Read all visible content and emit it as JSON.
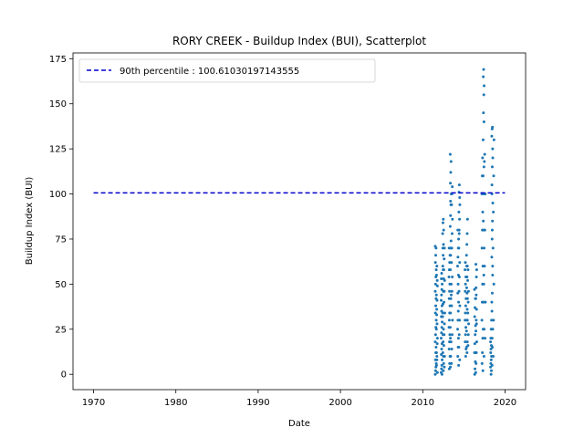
{
  "chart_data": {
    "type": "scatter",
    "title": "RORY CREEK - Buildup Index (BUI), Scatterplot",
    "xlabel": "Date",
    "ylabel": "Buildup Index (BUI)",
    "xlim": [
      1967.5,
      2022.5
    ],
    "ylim": [
      -8.5,
      178.2
    ],
    "x_ticks": [
      1970,
      1980,
      1990,
      2000,
      2010,
      2020
    ],
    "y_ticks": [
      0,
      25,
      50,
      75,
      100,
      125,
      150,
      175
    ],
    "legend_position": "top-left",
    "grid": false,
    "colors": {
      "points": "#1f77b4",
      "percentile_line": "#0000cd"
    },
    "reference_line": {
      "label": "90th percentile : 100.61030197143555",
      "y": 100.61030197143555,
      "x_range": [
        1970,
        2020
      ]
    },
    "series": [
      {
        "seasons": [
          {
            "x": 2011.58,
            "y": [
              0,
              2,
              4,
              6,
              8,
              12,
              15,
              18,
              22,
              26,
              30,
              34,
              38,
              42,
              46,
              50,
              54,
              58,
              62,
              66,
              70,
              71
            ]
          },
          {
            "x": 2011.72,
            "y": [
              1,
              5,
              10,
              17,
              25,
              33,
              41,
              49,
              55,
              60,
              52,
              44,
              36,
              28,
              20,
              12,
              8
            ]
          },
          {
            "x": 2012.3,
            "y": [
              0,
              1,
              3,
              5,
              8,
              11,
              14,
              17,
              20,
              23,
              26,
              29,
              32,
              35,
              38,
              41,
              44,
              47,
              50,
              53,
              56
            ]
          },
          {
            "x": 2012.48,
            "y": [
              2,
              6,
              12,
              18,
              25,
              32,
              39,
              46,
              53,
              60,
              66,
              72,
              78,
              84,
              86,
              80,
              70,
              58,
              46,
              34,
              22,
              10
            ]
          },
          {
            "x": 2012.62,
            "y": [
              4,
              10,
              16,
              22,
              28,
              34,
              40,
              46,
              52,
              58,
              64,
              70
            ]
          },
          {
            "x": 2013.25,
            "y": [
              3,
              6,
              10,
              14,
              18,
              22,
              26,
              30,
              34,
              38,
              42,
              46,
              50,
              54,
              58,
              62,
              66,
              70
            ]
          },
          {
            "x": 2013.4,
            "y": [
              4,
              10,
              18,
              26,
              34,
              42,
              50,
              58,
              66,
              74,
              82,
              88,
              94,
              100,
              106,
              112,
              118,
              122,
              96,
              70,
              44,
              20
            ]
          },
          {
            "x": 2013.55,
            "y": [
              6,
              14,
              22,
              30,
              38,
              46,
              54,
              62,
              70,
              78,
              86,
              94,
              100,
              104
            ]
          },
          {
            "x": 2014.3,
            "y": [
              5,
              10,
              15,
              20,
              25,
              30,
              35,
              40,
              45,
              50,
              55,
              60,
              65,
              70,
              75,
              80
            ]
          },
          {
            "x": 2014.45,
            "y": [
              8,
              15,
              22,
              30,
              38,
              46,
              54,
              62,
              70,
              78,
              86,
              94,
              101,
              105,
              98,
              90,
              80
            ]
          },
          {
            "x": 2015.2,
            "y": [
              10,
              14,
              18,
              22,
              26,
              30,
              34,
              38,
              42,
              46,
              50,
              54,
              58,
              62
            ]
          },
          {
            "x": 2015.38,
            "y": [
              12,
              18,
              24,
              30,
              36,
              42,
              48,
              54,
              60,
              66,
              72,
              78,
              86,
              60,
              45,
              30,
              15
            ]
          },
          {
            "x": 2015.52,
            "y": [
              16,
              22,
              28,
              34,
              40,
              46,
              52,
              58
            ]
          },
          {
            "x": 2016.35,
            "y": [
              0,
              3,
              7,
              12,
              17,
              22,
              27,
              32,
              37,
              42,
              47
            ]
          },
          {
            "x": 2016.5,
            "y": [
              1,
              6,
              12,
              18,
              24,
              30,
              36,
              42,
              48,
              54,
              58,
              61,
              44,
              28,
              12
            ]
          },
          {
            "x": 2017.25,
            "y": [
              2,
              6,
              12,
              20,
              30,
              40,
              50,
              60,
              70,
              80,
              90,
              100,
              110,
              120
            ]
          },
          {
            "x": 2017.4,
            "y": [
              10,
              25,
              40,
              55,
              70,
              85,
              100,
              115,
              130,
              145,
              155,
              160,
              165,
              169,
              140,
              110,
              80,
              50,
              25
            ]
          },
          {
            "x": 2017.55,
            "y": [
              20,
              40,
              60,
              80,
              100,
              118,
              122
            ]
          },
          {
            "x": 2018.3,
            "y": [
              0,
              2,
              4,
              6,
              8,
              10,
              12,
              14,
              16,
              18,
              20,
              25,
              30
            ]
          },
          {
            "x": 2018.45,
            "y": [
              5,
              15,
              25,
              35,
              45,
              55,
              65,
              75,
              85,
              95,
              105,
              115,
              125,
              132,
              136,
              137,
              120,
              100,
              80,
              60,
              40,
              20
            ]
          },
          {
            "x": 2018.6,
            "y": [
              10,
              30,
              50,
              70,
              90,
              110,
              130
            ]
          }
        ]
      }
    ]
  }
}
